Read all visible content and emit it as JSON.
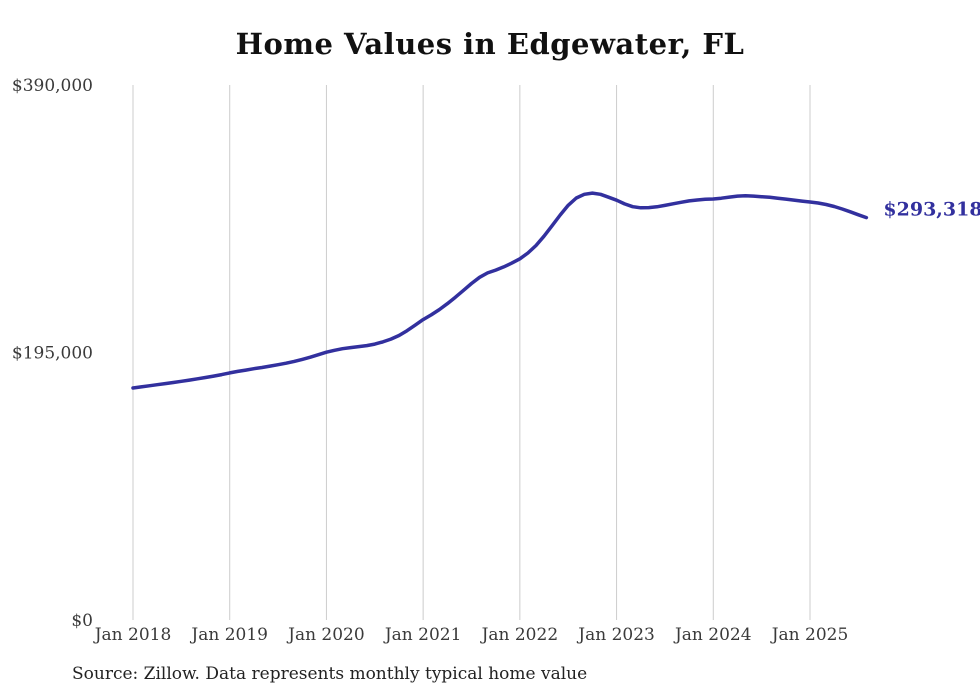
{
  "chart_data": {
    "type": "line",
    "title": "Home Values in Edgewater, FL",
    "source": "Source: Zillow. Data represents monthly typical home value",
    "legend": "none",
    "grid": "vertical-only",
    "ylim": [
      0,
      390000
    ],
    "y_ticks": [
      {
        "value": 0,
        "label": "$0"
      },
      {
        "value": 195000,
        "label": "$195,000"
      },
      {
        "value": 390000,
        "label": "$390,000"
      }
    ],
    "x_tick_labels": [
      "Jan 2018",
      "Jan 2019",
      "Jan 2020",
      "Jan 2021",
      "Jan 2022",
      "Jan 2023",
      "Jan 2024",
      "Jan 2025"
    ],
    "months_per_tick": 12,
    "end_label": "$293,318",
    "colors": {
      "line": "#32309E",
      "grid": "#CCCCCC",
      "title": "#111111",
      "axis_text": "#3A3A3A",
      "source_text": "#222222"
    },
    "series": [
      {
        "name": "Typical home value",
        "months": [
          "2018-01",
          "2018-02",
          "2018-03",
          "2018-04",
          "2018-05",
          "2018-06",
          "2018-07",
          "2018-08",
          "2018-09",
          "2018-10",
          "2018-11",
          "2018-12",
          "2019-01",
          "2019-02",
          "2019-03",
          "2019-04",
          "2019-05",
          "2019-06",
          "2019-07",
          "2019-08",
          "2019-09",
          "2019-10",
          "2019-11",
          "2019-12",
          "2020-01",
          "2020-02",
          "2020-03",
          "2020-04",
          "2020-05",
          "2020-06",
          "2020-07",
          "2020-08",
          "2020-09",
          "2020-10",
          "2020-11",
          "2020-12",
          "2021-01",
          "2021-02",
          "2021-03",
          "2021-04",
          "2021-05",
          "2021-06",
          "2021-07",
          "2021-08",
          "2021-09",
          "2021-10",
          "2021-11",
          "2021-12",
          "2022-01",
          "2022-02",
          "2022-03",
          "2022-04",
          "2022-05",
          "2022-06",
          "2022-07",
          "2022-08",
          "2022-09",
          "2022-10",
          "2022-11",
          "2022-12",
          "2023-01",
          "2023-02",
          "2023-03",
          "2023-04",
          "2023-05",
          "2023-06",
          "2023-07",
          "2023-08",
          "2023-09",
          "2023-10",
          "2023-11",
          "2023-12",
          "2024-01",
          "2024-02",
          "2024-03",
          "2024-04",
          "2024-05",
          "2024-06",
          "2024-07",
          "2024-08",
          "2024-09",
          "2024-10",
          "2024-11",
          "2024-12",
          "2025-01",
          "2025-02",
          "2025-03",
          "2025-04",
          "2025-05",
          "2025-06",
          "2025-07",
          "2025-08"
        ],
        "values": [
          169100,
          169900,
          170700,
          171500,
          172300,
          173100,
          174000,
          174900,
          175800,
          176800,
          177800,
          178900,
          180100,
          181200,
          182200,
          183200,
          184100,
          185100,
          186100,
          187200,
          188500,
          190000,
          191600,
          193400,
          195200,
          196600,
          197800,
          198600,
          199300,
          200000,
          201100,
          202700,
          204800,
          207400,
          210900,
          214900,
          219000,
          222400,
          226300,
          230600,
          235300,
          240300,
          245300,
          249800,
          253000,
          255100,
          257400,
          260200,
          263300,
          267500,
          273000,
          279800,
          287400,
          295200,
          302300,
          307600,
          310300,
          311200,
          310300,
          308200,
          306000,
          303300,
          301300,
          300500,
          300600,
          301200,
          302200,
          303400,
          304500,
          305500,
          306200,
          306700,
          306900,
          307500,
          308300,
          309000,
          309200,
          309000,
          308600,
          308100,
          307500,
          306800,
          306100,
          305400,
          304700,
          304000,
          302900,
          301400,
          299600,
          297600,
          295400,
          293318
        ]
      }
    ]
  }
}
